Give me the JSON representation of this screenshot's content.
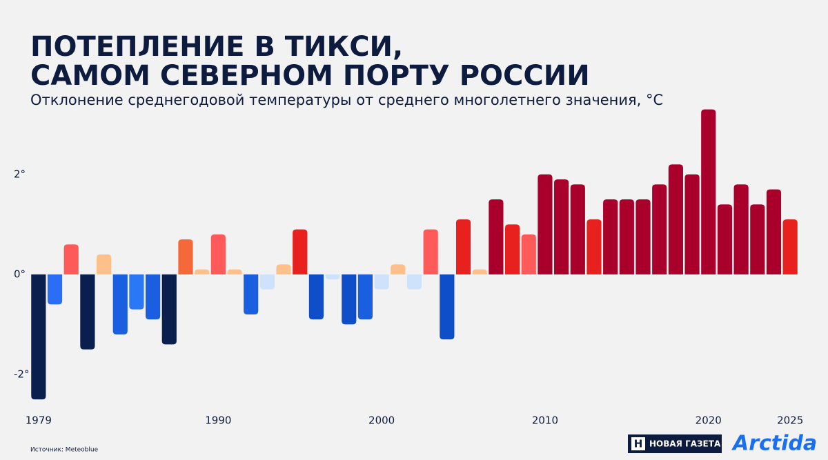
{
  "chart_data": {
    "type": "bar",
    "title": "ПОТЕПЛЕНИЕ В ТИКСИ,\nСАМОМ СЕВЕРНОМ ПОРТУ РОССИИ",
    "subtitle": "Отклонение среднегодовой температуры от среднего многолетнего значения, °C",
    "categories": [
      "1979",
      null,
      null,
      null,
      null,
      null,
      null,
      null,
      null,
      null,
      null,
      "1990",
      null,
      null,
      null,
      null,
      null,
      null,
      null,
      null,
      null,
      "2000",
      null,
      null,
      null,
      null,
      null,
      null,
      null,
      null,
      null,
      "2010",
      null,
      null,
      null,
      null,
      null,
      null,
      null,
      null,
      null,
      "2020",
      null,
      null,
      null,
      null,
      "2025"
    ],
    "values": [
      -2.5,
      -0.6,
      0.6,
      -1.5,
      0.4,
      -1.2,
      -0.7,
      -0.9,
      -1.4,
      0.7,
      0.1,
      0.8,
      0.1,
      -0.8,
      -0.3,
      0.2,
      0.9,
      -0.9,
      -0.1,
      -1.0,
      -0.9,
      -0.3,
      0.2,
      -0.3,
      0.9,
      -1.3,
      1.1,
      0.1,
      1.5,
      1.0,
      0.8,
      2.0,
      1.9,
      1.8,
      1.1,
      1.5,
      1.5,
      1.5,
      1.8,
      2.2,
      2.0,
      3.3,
      1.4,
      1.8,
      1.4,
      1.7,
      1.1
    ],
    "colors": [
      "#0b1f4f",
      "#2a6ef5",
      "#ff5a5a",
      "#0b1f4f",
      "#fdc08a",
      "#1a5fe0",
      "#2a78f5",
      "#1a5fe0",
      "#0b1f4f",
      "#f4683a",
      "#fdc08a",
      "#ff5a5a",
      "#fdc08a",
      "#1a5fe0",
      "#cfe2fb",
      "#fdc08a",
      "#e8201e",
      "#0e4fc9",
      "#cfe2fb",
      "#0e4fc9",
      "#1a5fe0",
      "#cfe2fb",
      "#fdc08a",
      "#cfe2fb",
      "#ff5a5a",
      "#0e4fc9",
      "#e8201e",
      "#fdc08a",
      "#a8002a",
      "#e8201e",
      "#ff5a5a",
      "#a8002a",
      "#a8002a",
      "#a8002a",
      "#e8201e",
      "#a8002a",
      "#a8002a",
      "#a8002a",
      "#a8002a",
      "#a8002a",
      "#a8002a",
      "#a8002a",
      "#a8002a",
      "#a8002a",
      "#a8002a",
      "#a8002a",
      "#e8201e"
    ],
    "ylim": [
      -2.65,
      3.35
    ],
    "yticks": [
      {
        "value": 2,
        "label": "2°"
      },
      {
        "value": 0,
        "label": "0°"
      },
      {
        "value": -2,
        "label": "-2°"
      }
    ],
    "grid": false
  },
  "footer": {
    "source": "Источник: Meteoblue",
    "logo_mark": "Н",
    "logo_left": "НОВАЯ ГАЗЕТА",
    "logo_right": "Arctida"
  }
}
